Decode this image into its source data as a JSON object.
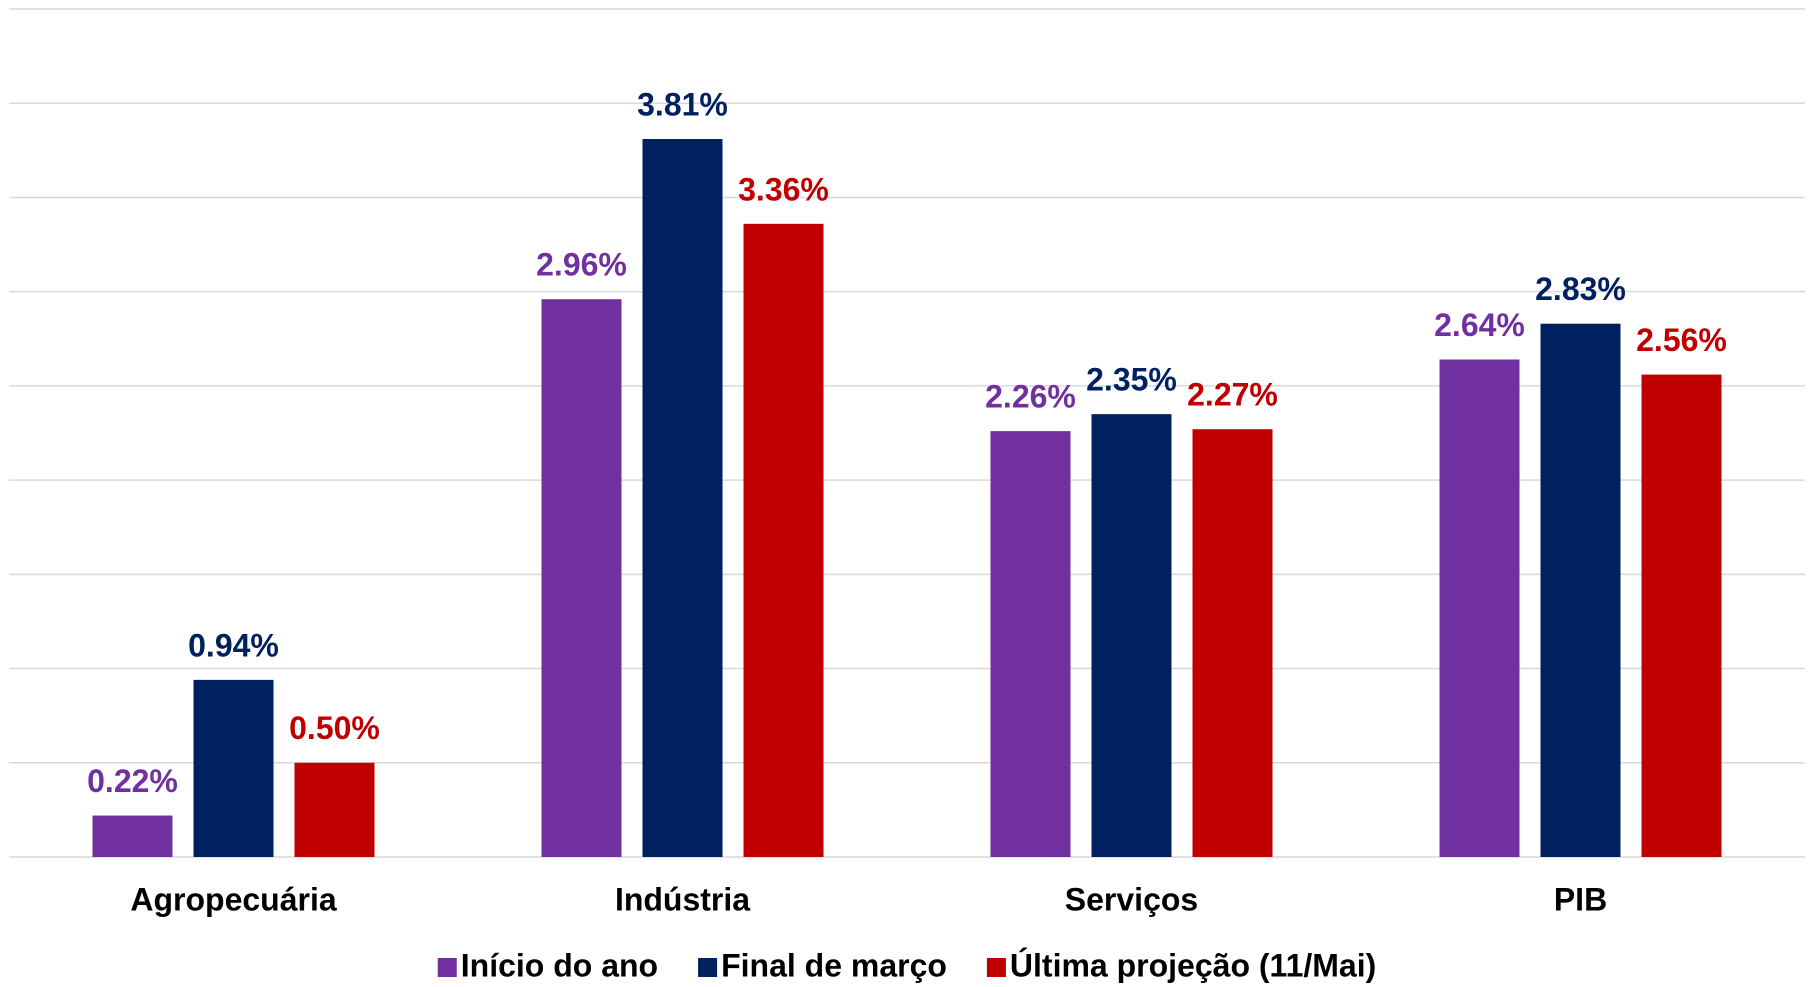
{
  "chart_data": {
    "type": "bar",
    "categories": [
      "Agropecuária",
      "Indústria",
      "Serviços",
      "PIB"
    ],
    "series": [
      {
        "name": "Início do ano",
        "color": "#7030a0",
        "values": [
          0.22,
          2.96,
          2.26,
          2.64
        ],
        "value_labels": [
          "0.22%",
          "2.96%",
          "2.26%",
          "2.64%"
        ]
      },
      {
        "name": "Final de março",
        "color": "#002060",
        "values": [
          0.94,
          3.81,
          2.35,
          2.83
        ],
        "value_labels": [
          "0.94%",
          "3.81%",
          "2.35%",
          "2.83%"
        ]
      },
      {
        "name": "Última projeção (11/Mai)",
        "color": "#c00000",
        "values": [
          0.5,
          3.36,
          2.27,
          2.56
        ],
        "value_labels": [
          "0.50%",
          "3.36%",
          "2.27%",
          "2.56%"
        ]
      }
    ],
    "ylim": [
      0,
      4.5
    ],
    "yticks": [
      0,
      0.5,
      1,
      1.5,
      2,
      2.5,
      3,
      3.5,
      4,
      4.5
    ],
    "grid": true,
    "legend": "bottom"
  }
}
